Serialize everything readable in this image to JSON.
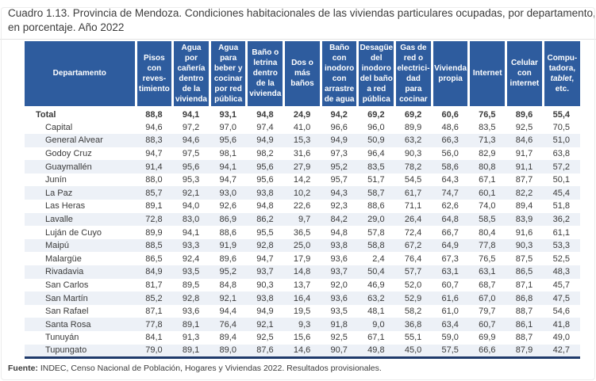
{
  "title_line1": "Cuadro 1.13. Provincia de Mendoza. Condiciones habitacionales de las viviendas particulares ocupadas, por departamento,",
  "title_line2": "en porcentaje. Año 2022",
  "colors": {
    "header_bg": "#2e5c9e",
    "header_text": "#ffffff",
    "stripe_row": "#edf1f7",
    "bottom_border": "#1f3a6b"
  },
  "table": {
    "columns": [
      {
        "text": "Departamento"
      },
      {
        "text": "Pisos con reves-timiento"
      },
      {
        "text": "Agua por cañería dentro de la vivienda"
      },
      {
        "text": "Agua para beber y cocinar por red pública"
      },
      {
        "text": "Baño o letrina dentro de la vivienda"
      },
      {
        "text": "Dos o más baños"
      },
      {
        "text": "Baño con inodoro con arrastre de agua"
      },
      {
        "text": "Desagüe del inodoro del baño a red pública"
      },
      {
        "text": "Gas de red o electrici-dad para cocinar"
      },
      {
        "text": "Vivienda propia"
      },
      {
        "text": "Internet"
      },
      {
        "text": "Celular con internet"
      },
      {
        "pre": "Compu-tadora, ",
        "italic": "tablet",
        "post": ", etc."
      }
    ],
    "rows": [
      {
        "name": "Total",
        "bold": true,
        "values": [
          "88,8",
          "94,1",
          "93,1",
          "94,8",
          "24,9",
          "94,2",
          "69,2",
          "69,2",
          "60,6",
          "76,5",
          "89,6",
          "55,4"
        ]
      },
      {
        "name": "Capital",
        "values": [
          "94,6",
          "97,2",
          "97,0",
          "97,4",
          "41,0",
          "96,6",
          "96,0",
          "89,9",
          "48,6",
          "83,5",
          "92,5",
          "70,5"
        ]
      },
      {
        "name": "General Alvear",
        "values": [
          "88,3",
          "94,6",
          "95,6",
          "94,9",
          "15,3",
          "94,9",
          "50,9",
          "63,2",
          "66,3",
          "71,3",
          "84,6",
          "51,0"
        ]
      },
      {
        "name": "Godoy Cruz",
        "values": [
          "94,7",
          "97,5",
          "98,1",
          "98,2",
          "31,6",
          "97,3",
          "96,4",
          "90,3",
          "56,0",
          "82,9",
          "91,7",
          "63,8"
        ]
      },
      {
        "name": "Guaymallén",
        "values": [
          "91,4",
          "95,6",
          "94,1",
          "95,6",
          "27,9",
          "95,2",
          "83,5",
          "78,2",
          "58,6",
          "80,8",
          "91,1",
          "57,2"
        ]
      },
      {
        "name": "Junín",
        "values": [
          "88,0",
          "95,3",
          "94,7",
          "95,6",
          "14,2",
          "95,7",
          "51,7",
          "54,5",
          "64,3",
          "67,1",
          "87,7",
          "50,1"
        ]
      },
      {
        "name": "La Paz",
        "values": [
          "85,7",
          "92,1",
          "93,0",
          "93,8",
          "10,2",
          "94,3",
          "58,7",
          "61,7",
          "74,7",
          "60,1",
          "82,2",
          "45,4"
        ]
      },
      {
        "name": "Las Heras",
        "values": [
          "89,1",
          "94,0",
          "92,6",
          "94,8",
          "22,6",
          "92,3",
          "88,6",
          "71,1",
          "62,6",
          "74,0",
          "89,4",
          "51,8"
        ]
      },
      {
        "name": "Lavalle",
        "values": [
          "72,8",
          "83,0",
          "86,9",
          "86,2",
          "9,7",
          "84,2",
          "29,0",
          "26,4",
          "64,8",
          "58,5",
          "83,9",
          "36,2"
        ]
      },
      {
        "name": "Luján de Cuyo",
        "values": [
          "89,9",
          "94,1",
          "88,6",
          "95,5",
          "36,5",
          "94,8",
          "57,8",
          "72,4",
          "66,7",
          "80,4",
          "91,6",
          "61,1"
        ]
      },
      {
        "name": "Maipú",
        "values": [
          "88,5",
          "93,3",
          "91,9",
          "92,8",
          "25,0",
          "93,8",
          "58,8",
          "67,2",
          "64,9",
          "77,8",
          "90,3",
          "53,3"
        ]
      },
      {
        "name": "Malargüe",
        "values": [
          "86,5",
          "92,4",
          "89,6",
          "94,7",
          "17,9",
          "93,6",
          "2,4",
          "76,4",
          "67,3",
          "76,5",
          "87,5",
          "52,5"
        ]
      },
      {
        "name": "Rivadavia",
        "values": [
          "84,9",
          "93,5",
          "95,2",
          "93,7",
          "14,8",
          "93,7",
          "50,4",
          "57,7",
          "63,1",
          "63,1",
          "86,5",
          "48,3"
        ]
      },
      {
        "name": "San Carlos",
        "values": [
          "81,7",
          "89,5",
          "84,8",
          "90,3",
          "13,7",
          "92,0",
          "46,9",
          "52,0",
          "60,7",
          "68,7",
          "87,1",
          "45,7"
        ]
      },
      {
        "name": "San Martín",
        "values": [
          "85,2",
          "92,8",
          "92,1",
          "93,8",
          "16,4",
          "93,6",
          "63,2",
          "52,9",
          "61,6",
          "67,0",
          "86,8",
          "47,5"
        ]
      },
      {
        "name": "San Rafael",
        "values": [
          "87,1",
          "93,6",
          "94,4",
          "94,9",
          "19,5",
          "93,5",
          "48,1",
          "58,2",
          "61,0",
          "79,7",
          "88,7",
          "54,6"
        ]
      },
      {
        "name": "Santa Rosa",
        "values": [
          "77,8",
          "89,1",
          "76,4",
          "92,1",
          "9,3",
          "91,8",
          "9,0",
          "36,8",
          "63,4",
          "60,7",
          "86,1",
          "41,8"
        ]
      },
      {
        "name": "Tunuyán",
        "values": [
          "84,1",
          "91,3",
          "89,4",
          "92,5",
          "15,6",
          "92,5",
          "67,1",
          "55,1",
          "59,0",
          "69,9",
          "88,7",
          "49,0"
        ]
      },
      {
        "name": "Tupungato",
        "values": [
          "79,0",
          "89,1",
          "89,0",
          "87,6",
          "14,6",
          "90,7",
          "49,8",
          "45,0",
          "57,5",
          "66,6",
          "87,9",
          "42,7"
        ]
      }
    ]
  },
  "source": {
    "label": "Fuente:",
    "text": "INDEC, Censo Nacional de Población, Hogares y Viviendas 2022. Resultados provisionales."
  }
}
